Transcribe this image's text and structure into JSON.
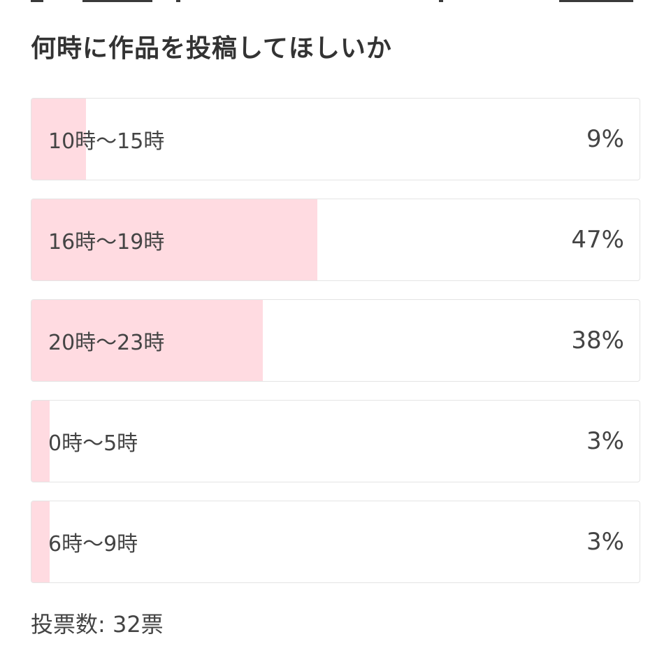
{
  "poll": {
    "title": "何時に作品を投稿してほしいか",
    "options": [
      {
        "label": "10時〜15時",
        "percent_label": "9%",
        "share": 0.09
      },
      {
        "label": "16時〜19時",
        "percent_label": "47%",
        "share": 0.47
      },
      {
        "label": "20時〜23時",
        "percent_label": "38%",
        "share": 0.38
      },
      {
        "label": "0時〜5時",
        "percent_label": "3%",
        "share": 0.03
      },
      {
        "label": "6時〜9時",
        "percent_label": "3%",
        "share": 0.03
      }
    ],
    "vote_count_label": "投票数: 32票"
  },
  "colors": {
    "bar_fill": "#ffdbe1",
    "option_border": "#e4e4e4",
    "text": "#444444"
  }
}
